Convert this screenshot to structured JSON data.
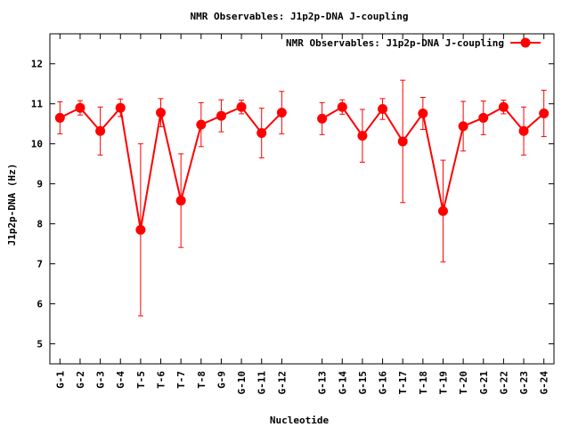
{
  "chart_data": {
    "type": "line",
    "title": "NMR Observables: J1p2p-DNA J-coupling",
    "xlabel": "Nucleotide",
    "ylabel": "J1p2p-DNA (Hz)",
    "ylim": [
      4.5,
      12.75
    ],
    "yticks": [
      "5",
      "6",
      "7",
      "8",
      "9",
      "10",
      "11",
      "12"
    ],
    "legend_position": "top-right",
    "grid": false,
    "series": [
      {
        "name": "NMR Observables: J1p2p-DNA J-coupling",
        "color": "#ff0000",
        "segments": [
          {
            "categories": [
              "G-1",
              "G-2",
              "G-3",
              "G-4",
              "T-5",
              "T-6",
              "T-7",
              "T-8",
              "G-9",
              "G-10",
              "G-11",
              "G-12"
            ],
            "positions": [
              1,
              2,
              3,
              4,
              5,
              6,
              7,
              8,
              9,
              10,
              11,
              12
            ],
            "values": [
              10.65,
              10.9,
              10.32,
              10.9,
              7.85,
              10.78,
              8.58,
              10.48,
              10.7,
              10.92,
              10.27,
              10.78
            ],
            "errors": [
              0.4,
              0.18,
              0.6,
              0.22,
              2.15,
              0.35,
              1.17,
              0.55,
              0.4,
              0.17,
              0.62,
              0.53
            ]
          },
          {
            "categories": [
              "G-13",
              "G-14",
              "G-15",
              "G-16",
              "T-17",
              "T-18",
              "T-19",
              "T-20",
              "G-21",
              "G-22",
              "G-23",
              "G-24"
            ],
            "positions": [
              14,
              15,
              16,
              17,
              18,
              19,
              20,
              21,
              22,
              23,
              24,
              25
            ],
            "values": [
              10.63,
              10.92,
              10.2,
              10.87,
              10.06,
              10.76,
              8.32,
              10.44,
              10.65,
              10.92,
              10.32,
              10.76
            ],
            "errors": [
              0.4,
              0.18,
              0.66,
              0.26,
              1.53,
              0.4,
              1.27,
              0.62,
              0.42,
              0.17,
              0.6,
              0.58
            ]
          }
        ]
      }
    ]
  }
}
